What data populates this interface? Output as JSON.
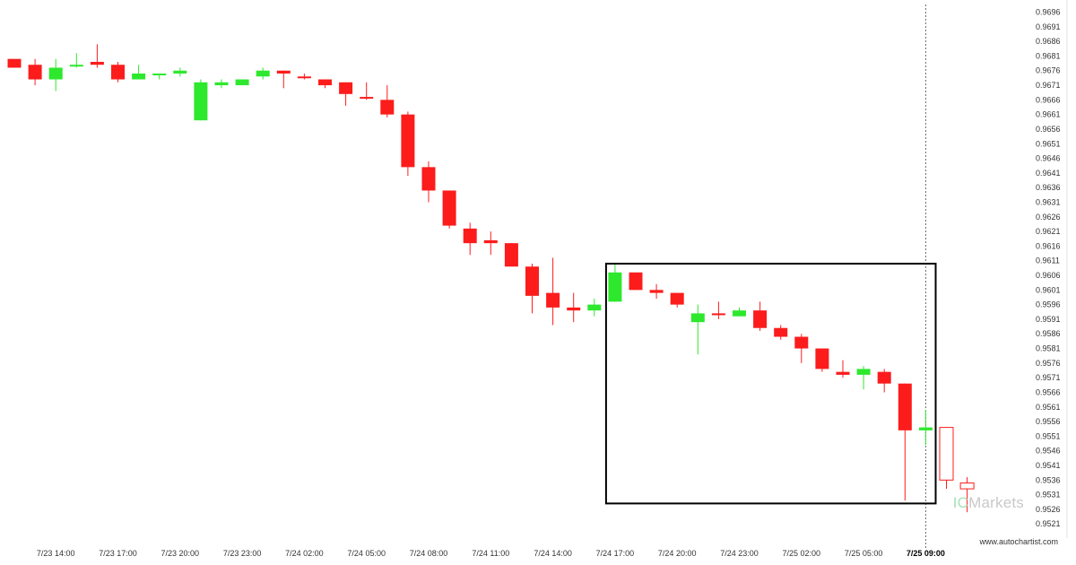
{
  "chart_data": {
    "type": "candlestick",
    "title": "",
    "xlabel": "",
    "ylabel": "",
    "ylim": [
      0.9518,
      0.9698
    ],
    "y_ticks": [
      "0.9696",
      "0.9691",
      "0.9686",
      "0.9681",
      "0.9676",
      "0.9671",
      "0.9666",
      "0.9661",
      "0.9656",
      "0.9651",
      "0.9646",
      "0.9641",
      "0.9636",
      "0.9631",
      "0.9626",
      "0.9621",
      "0.9616",
      "0.9611",
      "0.9606",
      "0.9601",
      "0.9596",
      "0.9591",
      "0.9586",
      "0.9581",
      "0.9576",
      "0.9571",
      "0.9566",
      "0.9561",
      "0.9556",
      "0.9551",
      "0.9546",
      "0.9541",
      "0.9536",
      "0.9531",
      "0.9526",
      "0.9521"
    ],
    "x_ticks": [
      {
        "index": 2,
        "label": "7/23 14:00"
      },
      {
        "index": 5,
        "label": "7/23 17:00"
      },
      {
        "index": 8,
        "label": "7/23 20:00"
      },
      {
        "index": 11,
        "label": "7/23 23:00"
      },
      {
        "index": 14,
        "label": "7/24 02:00"
      },
      {
        "index": 17,
        "label": "7/24 05:00"
      },
      {
        "index": 20,
        "label": "7/24 08:00"
      },
      {
        "index": 23,
        "label": "7/24 11:00"
      },
      {
        "index": 26,
        "label": "7/24 14:00"
      },
      {
        "index": 29,
        "label": "7/24 17:00"
      },
      {
        "index": 32,
        "label": "7/24 20:00"
      },
      {
        "index": 35,
        "label": "7/24 23:00"
      },
      {
        "index": 38,
        "label": "7/25 02:00"
      },
      {
        "index": 41,
        "label": "7/25 05:00"
      },
      {
        "index": 44,
        "label": "7/25 09:00",
        "bold": true
      }
    ],
    "candles": [
      {
        "o": 0.968,
        "h": 0.968,
        "l": 0.9677,
        "c": 0.9677,
        "kind": "down"
      },
      {
        "o": 0.9678,
        "h": 0.968,
        "l": 0.9671,
        "c": 0.9673,
        "kind": "down"
      },
      {
        "o": 0.9673,
        "h": 0.968,
        "l": 0.9669,
        "c": 0.9677,
        "kind": "up"
      },
      {
        "o": 0.9678,
        "h": 0.9682,
        "l": 0.9677,
        "c": 0.9678,
        "kind": "up"
      },
      {
        "o": 0.9679,
        "h": 0.9685,
        "l": 0.9677,
        "c": 0.9678,
        "kind": "down"
      },
      {
        "o": 0.9678,
        "h": 0.9679,
        "l": 0.9672,
        "c": 0.9673,
        "kind": "down"
      },
      {
        "o": 0.9673,
        "h": 0.9678,
        "l": 0.9673,
        "c": 0.9675,
        "kind": "up"
      },
      {
        "o": 0.9675,
        "h": 0.9675,
        "l": 0.9673,
        "c": 0.9675,
        "kind": "up"
      },
      {
        "o": 0.9675,
        "h": 0.9677,
        "l": 0.9674,
        "c": 0.9676,
        "kind": "up"
      },
      {
        "o": 0.9659,
        "h": 0.9673,
        "l": 0.9659,
        "c": 0.9672,
        "kind": "up"
      },
      {
        "o": 0.9671,
        "h": 0.9673,
        "l": 0.967,
        "c": 0.9672,
        "kind": "up"
      },
      {
        "o": 0.9671,
        "h": 0.9673,
        "l": 0.9671,
        "c": 0.9673,
        "kind": "up"
      },
      {
        "o": 0.9674,
        "h": 0.9677,
        "l": 0.9673,
        "c": 0.9676,
        "kind": "up"
      },
      {
        "o": 0.9676,
        "h": 0.9676,
        "l": 0.967,
        "c": 0.9675,
        "kind": "down"
      },
      {
        "o": 0.9674,
        "h": 0.9675,
        "l": 0.9673,
        "c": 0.9674,
        "kind": "down"
      },
      {
        "o": 0.9673,
        "h": 0.9673,
        "l": 0.967,
        "c": 0.9671,
        "kind": "down"
      },
      {
        "o": 0.9672,
        "h": 0.9672,
        "l": 0.9664,
        "c": 0.9668,
        "kind": "down"
      },
      {
        "o": 0.9667,
        "h": 0.9672,
        "l": 0.9666,
        "c": 0.9667,
        "kind": "down"
      },
      {
        "o": 0.9666,
        "h": 0.9671,
        "l": 0.966,
        "c": 0.9661,
        "kind": "down"
      },
      {
        "o": 0.9661,
        "h": 0.9662,
        "l": 0.964,
        "c": 0.9643,
        "kind": "down"
      },
      {
        "o": 0.9643,
        "h": 0.9645,
        "l": 0.9631,
        "c": 0.9635,
        "kind": "down"
      },
      {
        "o": 0.9635,
        "h": 0.9635,
        "l": 0.9622,
        "c": 0.9623,
        "kind": "down"
      },
      {
        "o": 0.9622,
        "h": 0.9624,
        "l": 0.9613,
        "c": 0.9617,
        "kind": "down"
      },
      {
        "o": 0.9618,
        "h": 0.9621,
        "l": 0.9613,
        "c": 0.9617,
        "kind": "down"
      },
      {
        "o": 0.9617,
        "h": 0.9617,
        "l": 0.961,
        "c": 0.9609,
        "kind": "down"
      },
      {
        "o": 0.9609,
        "h": 0.961,
        "l": 0.9593,
        "c": 0.9599,
        "kind": "down"
      },
      {
        "o": 0.96,
        "h": 0.9612,
        "l": 0.9589,
        "c": 0.9595,
        "kind": "down"
      },
      {
        "o": 0.9595,
        "h": 0.96,
        "l": 0.959,
        "c": 0.9594,
        "kind": "down"
      },
      {
        "o": 0.9594,
        "h": 0.9598,
        "l": 0.9592,
        "c": 0.9596,
        "kind": "up"
      },
      {
        "o": 0.9597,
        "h": 0.961,
        "l": 0.9597,
        "c": 0.9607,
        "kind": "up"
      },
      {
        "o": 0.9607,
        "h": 0.9607,
        "l": 0.9601,
        "c": 0.9601,
        "kind": "down"
      },
      {
        "o": 0.9601,
        "h": 0.9603,
        "l": 0.9598,
        "c": 0.96,
        "kind": "down"
      },
      {
        "o": 0.96,
        "h": 0.96,
        "l": 0.9595,
        "c": 0.9596,
        "kind": "down"
      },
      {
        "o": 0.959,
        "h": 0.9596,
        "l": 0.9579,
        "c": 0.9593,
        "kind": "up"
      },
      {
        "o": 0.9593,
        "h": 0.9597,
        "l": 0.9591,
        "c": 0.9593,
        "kind": "down"
      },
      {
        "o": 0.9592,
        "h": 0.9595,
        "l": 0.9592,
        "c": 0.9594,
        "kind": "up"
      },
      {
        "o": 0.9594,
        "h": 0.9597,
        "l": 0.9587,
        "c": 0.9588,
        "kind": "down"
      },
      {
        "o": 0.9588,
        "h": 0.9589,
        "l": 0.9584,
        "c": 0.9585,
        "kind": "down"
      },
      {
        "o": 0.9585,
        "h": 0.9586,
        "l": 0.9576,
        "c": 0.9581,
        "kind": "down"
      },
      {
        "o": 0.9581,
        "h": 0.9581,
        "l": 0.9573,
        "c": 0.9574,
        "kind": "down"
      },
      {
        "o": 0.9573,
        "h": 0.9577,
        "l": 0.9571,
        "c": 0.9572,
        "kind": "down"
      },
      {
        "o": 0.9572,
        "h": 0.9575,
        "l": 0.9567,
        "c": 0.9574,
        "kind": "up"
      },
      {
        "o": 0.9573,
        "h": 0.9574,
        "l": 0.9566,
        "c": 0.9569,
        "kind": "down"
      },
      {
        "o": 0.9569,
        "h": 0.9569,
        "l": 0.9529,
        "c": 0.9553,
        "kind": "down"
      },
      {
        "o": 0.9553,
        "h": 0.956,
        "l": 0.9548,
        "c": 0.9554,
        "kind": "up"
      },
      {
        "o": 0.9554,
        "h": 0.9554,
        "l": 0.9533,
        "c": 0.9536,
        "kind": "hollow"
      },
      {
        "o": 0.9535,
        "h": 0.9537,
        "l": 0.9525,
        "c": 0.9533,
        "kind": "hollow"
      }
    ],
    "pattern_box": {
      "start_index": 29,
      "end_index": 45,
      "price_high": 0.961,
      "price_low": 0.9528
    },
    "current_time_index": 44,
    "colors": {
      "up": "#2ee82e",
      "down": "#fc1c1c",
      "box": "#000000",
      "vline": "#666666",
      "text": "#333333"
    }
  },
  "watermark": {
    "prefix": "IC",
    "suffix": "Markets"
  },
  "site": "www.autochartist.com"
}
